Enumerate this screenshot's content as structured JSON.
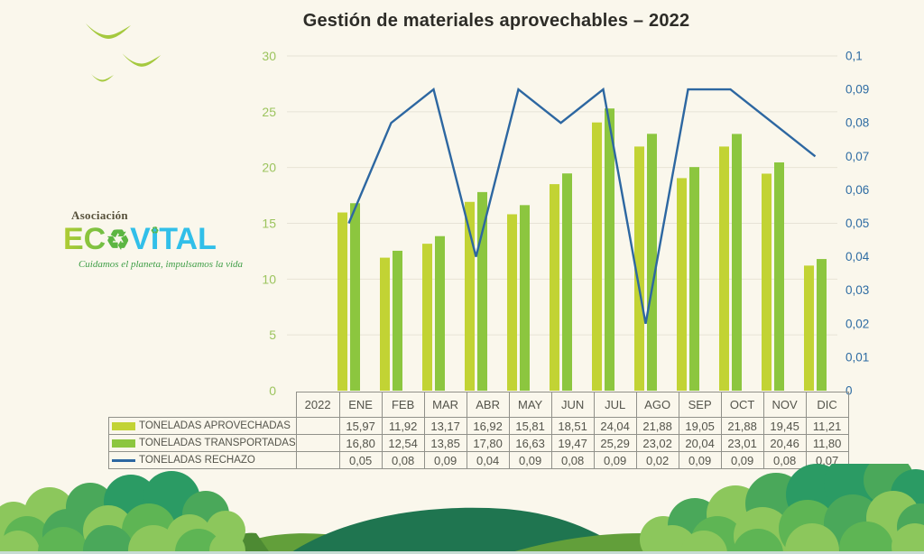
{
  "header": {
    "title": "Gestión de materiales aprovechables – 2022"
  },
  "logo": {
    "association": "Asociación",
    "brand_ec": "EC",
    "brand_vital_v": "V",
    "brand_vital_i": "I",
    "brand_vital_tal": "TAL",
    "recycle_glyph": "♻",
    "tagline": "Cuidamos el planeta, impulsamos la vida",
    "colors": {
      "ec_gradient_start": "#b1cc33",
      "ec_gradient_end": "#6fbe44",
      "vital": "#31bfe9",
      "recycle": "#5cb642",
      "association": "#57513b",
      "tagline": "#3f9e47"
    }
  },
  "chart_data": {
    "type": "bar",
    "subtype": "combo-bar-line-dual-axis",
    "title": "Gestión de materiales aprovechables – 2022",
    "categories": [
      "ENE",
      "FEB",
      "MAR",
      "ABR",
      "MAY",
      "JUN",
      "JUL",
      "AGO",
      "SEP",
      "OCT",
      "NOV",
      "DIC"
    ],
    "series": [
      {
        "name": "TONELADAS APROVECHADAS",
        "type": "bar",
        "axis": "left",
        "color": "#c2d334",
        "values": [
          15.97,
          11.92,
          13.17,
          16.92,
          15.81,
          18.51,
          24.04,
          21.88,
          19.05,
          21.88,
          19.45,
          11.21
        ]
      },
      {
        "name": "TONELADAS TRANSPORTADAS",
        "type": "bar",
        "axis": "left",
        "color": "#8cc63f",
        "values": [
          16.8,
          12.54,
          13.85,
          17.8,
          16.63,
          19.47,
          25.29,
          23.02,
          20.04,
          23.01,
          20.46,
          11.8
        ]
      },
      {
        "name": "TONELADAS RECHAZO",
        "type": "line",
        "axis": "right",
        "color": "#2d67a1",
        "values": [
          0.05,
          0.08,
          0.09,
          0.04,
          0.09,
          0.08,
          0.09,
          0.02,
          0.09,
          0.09,
          0.08,
          0.07
        ]
      }
    ],
    "left_axis": {
      "min": 0,
      "max": 30,
      "tick_labels": [
        "0",
        "5",
        "10",
        "15",
        "20",
        "25",
        "30"
      ],
      "color": "#9cc45e"
    },
    "right_axis": {
      "min": 0,
      "max": 0.1,
      "tick_labels": [
        "0",
        "0,01",
        "0,02",
        "0,03",
        "0,04",
        "0,05",
        "0,06",
        "0,07",
        "0,08",
        "0,09",
        "0,1"
      ],
      "color": "#2e6ca3"
    },
    "grid": true,
    "gridline_color": "#e7e3d6",
    "legend_position": "table-left"
  },
  "table": {
    "year_header": "2022",
    "columns": [
      "ENE",
      "FEB",
      "MAR",
      "ABR",
      "MAY",
      "JUN",
      "JUL",
      "AGO",
      "SEP",
      "OCT",
      "NOV",
      "DIC"
    ],
    "rows": [
      {
        "label": "TONELADAS APROVECHADAS",
        "swatch": "bar",
        "color": "#c2d334",
        "values": [
          "15,97",
          "11,92",
          "13,17",
          "16,92",
          "15,81",
          "18,51",
          "24,04",
          "21,88",
          "19,05",
          "21,88",
          "19,45",
          "11,21"
        ]
      },
      {
        "label": "TONELADAS TRANSPORTADAS",
        "swatch": "bar",
        "color": "#8cc63f",
        "values": [
          "16,80",
          "12,54",
          "13,85",
          "17,80",
          "16,63",
          "19,47",
          "25,29",
          "23,02",
          "20,04",
          "23,01",
          "20,46",
          "11,80"
        ]
      },
      {
        "label": "TONELADAS RECHAZO",
        "swatch": "line",
        "color": "#2d67a1",
        "values": [
          "0,05",
          "0,08",
          "0,09",
          "0,04",
          "0,09",
          "0,08",
          "0,09",
          "0,02",
          "0,09",
          "0,09",
          "0,08",
          "0,07"
        ]
      }
    ]
  },
  "decor": {
    "bird_color": "#a5c93e"
  }
}
